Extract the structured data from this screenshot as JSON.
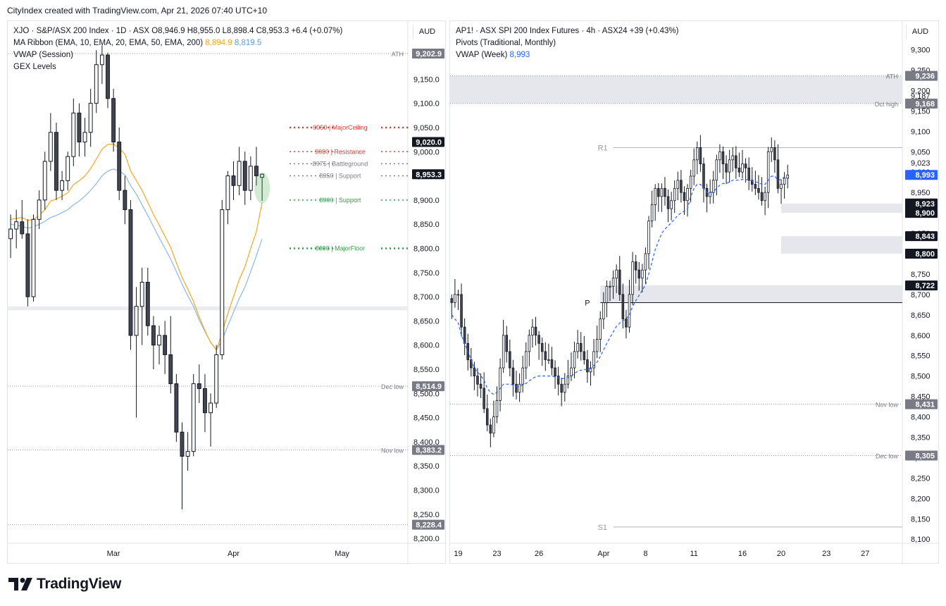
{
  "header": {
    "credit": "CityIndex created with TradingView.com, Apr 21, 2026 07:40 UTC+10"
  },
  "footer": {
    "brand": "TradingView"
  },
  "left": {
    "currency": "AUD",
    "legend": {
      "symbol": "XJO · S&P/ASX 200 Index · 1D · ASX",
      "ohlc": "O8,946.9  H8,955.0  L8,898.4  C8,953.3  +6.4 (+0.07%)",
      "ma_ribbon": "MA Ribbon (EMA, 10, EMA, 20, EMA, 50, EMA, 200)",
      "ma_val_1": "8,894.9",
      "ma_val_2": "8,819.5",
      "vwap": "VWAP (Session)",
      "gex": "GEX Levels"
    }
  },
  "right": {
    "currency": "AUD",
    "legend": {
      "symbol": "AP1! · ASX SPI 200 Index Futures · 4h · ASX24  +39 (+0.43%)",
      "pivots": "Pivots (Traditional, Monthly)",
      "vwap": "VWAP (Week)",
      "vwap_val": "8,993"
    }
  },
  "chart_data": [
    {
      "type": "candlestick",
      "title": "XJO · S&P/ASX 200 Index · 1D · ASX",
      "yrange": [
        8190,
        9270
      ],
      "yticks": [
        8200,
        8250,
        8300,
        8350,
        8400,
        8450,
        8500,
        8550,
        8600,
        8650,
        8700,
        8750,
        8800,
        8850,
        8900,
        8950,
        9000,
        9050,
        9100,
        9150,
        9200
      ],
      "ytick_labels": [
        "8,200.0",
        "8,250.0",
        "8,300.0",
        "8,350.0",
        "8,400.0",
        "8,450.0",
        "8,500.0",
        "8,550.0",
        "8,600.0",
        "8,650.0",
        "8,700.0",
        "8,750.0",
        "8,800.0",
        "8,850.0",
        "8,900.0",
        "8,950.0",
        "9,000.0",
        "9,050.0",
        "9,100.0",
        "9,150.0",
        "9,200.0"
      ],
      "xlabels": [
        {
          "i": 18,
          "label": "Mar"
        },
        {
          "i": 39,
          "label": "Apr"
        },
        {
          "i": 58,
          "label": "May"
        }
      ],
      "bar_count": 70,
      "candles": [
        [
          8820,
          8870,
          8780,
          8840
        ],
        [
          8840,
          8880,
          8800,
          8855
        ],
        [
          8855,
          8900,
          8820,
          8830
        ],
        [
          8830,
          8860,
          8680,
          8700
        ],
        [
          8700,
          8870,
          8690,
          8860
        ],
        [
          8860,
          8920,
          8840,
          8900
        ],
        [
          8900,
          9000,
          8880,
          8980
        ],
        [
          8980,
          9080,
          8960,
          9040
        ],
        [
          9040,
          9060,
          8900,
          8920
        ],
        [
          8920,
          8960,
          8900,
          8940
        ],
        [
          8940,
          9000,
          8920,
          8990
        ],
        [
          8990,
          9110,
          8970,
          9080
        ],
        [
          9080,
          9100,
          8990,
          9020
        ],
        [
          9020,
          9070,
          8990,
          9040
        ],
        [
          9040,
          9130,
          9010,
          9100
        ],
        [
          9100,
          9210,
          9080,
          9180
        ],
        [
          9180,
          9220,
          9140,
          9200
        ],
        [
          9200,
          9205,
          9090,
          9110
        ],
        [
          9110,
          9130,
          9000,
          9020
        ],
        [
          9020,
          9050,
          8900,
          8920
        ],
        [
          8920,
          8950,
          8850,
          8880
        ],
        [
          8880,
          8900,
          8590,
          8620
        ],
        [
          8620,
          8720,
          8450,
          8680
        ],
        [
          8680,
          8760,
          8600,
          8730
        ],
        [
          8730,
          8760,
          8620,
          8640
        ],
        [
          8640,
          8660,
          8550,
          8600
        ],
        [
          8600,
          8640,
          8560,
          8620
        ],
        [
          8620,
          8650,
          8540,
          8580
        ],
        [
          8580,
          8660,
          8500,
          8520
        ],
        [
          8520,
          8540,
          8400,
          8420
        ],
        [
          8420,
          8440,
          8260,
          8370
        ],
        [
          8370,
          8420,
          8340,
          8380
        ],
        [
          8380,
          8540,
          8370,
          8520
        ],
        [
          8520,
          8560,
          8480,
          8510
        ],
        [
          8510,
          8540,
          8420,
          8460
        ],
        [
          8460,
          8500,
          8390,
          8480
        ],
        [
          8480,
          8600,
          8470,
          8580
        ],
        [
          8580,
          8900,
          8570,
          8880
        ],
        [
          8880,
          8960,
          8850,
          8950
        ],
        [
          8950,
          8980,
          8900,
          8930
        ],
        [
          8930,
          9010,
          8910,
          8980
        ],
        [
          8980,
          9000,
          8890,
          8920
        ],
        [
          8920,
          8990,
          8900,
          8970
        ],
        [
          8970,
          9010,
          8930,
          8950
        ],
        [
          8946.9,
          8955,
          8898.4,
          8953.3
        ]
      ],
      "ema_fast": [
        8860,
        8862,
        8864,
        8858,
        8860,
        8868,
        8880,
        8898,
        8902,
        8908,
        8915,
        8932,
        8940,
        8950,
        8965,
        8985,
        9005,
        9015,
        9016,
        9007,
        8995,
        8960,
        8940,
        8920,
        8895,
        8870,
        8848,
        8825,
        8802,
        8770,
        8740,
        8716,
        8690,
        8658,
        8630,
        8605,
        8590,
        8625,
        8665,
        8700,
        8735,
        8762,
        8800,
        8835,
        8894.9
      ],
      "ema_slow": [
        8850,
        8848,
        8846,
        8842,
        8844,
        8850,
        8856,
        8864,
        8868,
        8874,
        8880,
        8890,
        8898,
        8908,
        8920,
        8934,
        8950,
        8960,
        8964,
        8960,
        8952,
        8930,
        8912,
        8890,
        8868,
        8845,
        8822,
        8800,
        8778,
        8752,
        8726,
        8702,
        8680,
        8652,
        8628,
        8606,
        8590,
        8610,
        8640,
        8668,
        8696,
        8720,
        8752,
        8785,
        8819.5
      ],
      "levels": [
        {
          "value": 9050,
          "label": "9050 | MajorCeiling",
          "color": "#e53935"
        },
        {
          "value": 9000,
          "label": "9000 | Resistance",
          "color": "#e53935"
        },
        {
          "value": 8975,
          "label": "8975 | Battleground",
          "color": "#787b86"
        },
        {
          "value": 8950,
          "label": "8950 | Support",
          "color": "#787b86"
        },
        {
          "value": 8900,
          "label": "8900 | Support",
          "color": "#2e9e44"
        },
        {
          "value": 8800,
          "label": "8800 | MajorFloor",
          "color": "#2e9e44"
        }
      ],
      "ref_lines": [
        {
          "value": 9202.9,
          "label": "ATH",
          "price": "9,202.9"
        },
        {
          "value": 8514.9,
          "label": "Dec low",
          "price": "8,514.9"
        },
        {
          "value": 8383.2,
          "label": "Nov low",
          "price": "8,383.2"
        },
        {
          "value": 8228.4,
          "label": "",
          "price": "8,228.4"
        }
      ],
      "price_labels": [
        {
          "value": 9020.0,
          "label": "9,020.0"
        },
        {
          "value": 8953.3,
          "label": "8,953.3"
        }
      ]
    },
    {
      "type": "candlestick",
      "title": "AP1! · ASX SPI 200 Index Futures · 4h · ASX24",
      "yrange": [
        8090,
        9370
      ],
      "yticks": [
        8100,
        8150,
        8200,
        8250,
        8300,
        8350,
        8400,
        8450,
        8500,
        8550,
        8600,
        8650,
        8700,
        8750,
        8800,
        8850,
        8900,
        8950,
        9000,
        9050,
        9100,
        9150,
        9200,
        9250,
        9300
      ],
      "ytick_labels": [
        "8,100",
        "8,150",
        "8,200",
        "8,250",
        "8,300",
        "8,350",
        "8,400",
        "8,450",
        "8,500",
        "8,550",
        "8,600",
        "8,650",
        "8,700",
        "8,750",
        "8,800",
        "8,850",
        "8,900",
        "8,950",
        "9,000",
        "9,050",
        "9,100",
        "9,150",
        "9,200",
        "9,250",
        "9,300"
      ],
      "xlabels": [
        {
          "i": 2,
          "label": "19"
        },
        {
          "i": 14,
          "label": "23"
        },
        {
          "i": 27,
          "label": "26"
        },
        {
          "i": 47,
          "label": "Apr"
        },
        {
          "i": 60,
          "label": "8"
        },
        {
          "i": 75,
          "label": "11"
        },
        {
          "i": 90,
          "label": "16"
        },
        {
          "i": 102,
          "label": "20"
        },
        {
          "i": 116,
          "label": "23"
        },
        {
          "i": 128,
          "label": "27"
        }
      ],
      "bar_count": 140,
      "closes": [
        8680,
        8700,
        8700,
        8620,
        8580,
        8540,
        8520,
        8500,
        8480,
        8470,
        8420,
        8380,
        8360,
        8400,
        8440,
        8520,
        8600,
        8560,
        8520,
        8480,
        8460,
        8480,
        8520,
        8560,
        8600,
        8620,
        8600,
        8580,
        8560,
        8540,
        8540,
        8520,
        8500,
        8480,
        8460,
        8480,
        8500,
        8520,
        8560,
        8580,
        8560,
        8540,
        8510,
        8520,
        8560,
        8590,
        8640,
        8680,
        8720,
        8720,
        8740,
        8760,
        8700,
        8640,
        8620,
        8700,
        8780,
        8760,
        8740,
        8760,
        8800,
        8880,
        8920,
        8960,
        8940,
        8960,
        8940,
        8910,
        8930,
        8960,
        8980,
        8950,
        8930,
        8960,
        8990,
        9030,
        9060,
        9020,
        8960,
        8940,
        8950,
        8980,
        9030,
        9050,
        9020,
        9000,
        9030,
        9040,
        9010,
        9000,
        9020,
        9010,
        8980,
        8970,
        8960,
        8950,
        8930,
        8950,
        9050,
        9060,
        9030,
        8960,
        8970,
        8985,
        8993
      ],
      "vwap": [
        8650,
        8640,
        8630,
        8600,
        8580,
        8560,
        8540,
        8520,
        8510,
        8500,
        8490,
        8470,
        8460,
        8455,
        8460,
        8470,
        8480,
        8480,
        8480,
        8478,
        8475,
        8475,
        8478,
        8482,
        8488,
        8494,
        8498,
        8500,
        8500,
        8500,
        8500,
        8500,
        8498,
        8496,
        8494,
        8494,
        8496,
        8500,
        8506,
        8512,
        8514,
        8516,
        8516,
        8518,
        8526,
        8534,
        8548,
        8564,
        8580,
        8594,
        8608,
        8622,
        8630,
        8636,
        8640,
        8650,
        8670,
        8685,
        8698,
        8710,
        8724,
        8750,
        8780,
        8810,
        8830,
        8850,
        8860,
        8868,
        8876,
        8885,
        8894,
        8900,
        8904,
        8910,
        8940,
        8960,
        8970,
        8970,
        8960,
        8950,
        8950,
        8952,
        8960,
        8968,
        8972,
        8972,
        8976,
        8980,
        8980,
        8980,
        8982,
        8982,
        8980,
        8978,
        8976,
        8974,
        8970,
        8970,
        8980,
        8990,
        8990,
        8980,
        8982,
        8988,
        8993
      ],
      "ref_lines": [
        {
          "value": 9236,
          "label": "ATH",
          "price": "9,236"
        },
        {
          "value": 9168,
          "label": "Oct high",
          "price": "9,168"
        },
        {
          "value": 8431,
          "label": "Nov low",
          "price": "8,431"
        },
        {
          "value": 8305,
          "label": "Dec low",
          "price": "8,305"
        }
      ],
      "pivots": [
        {
          "label": "R1",
          "value": 9060
        },
        {
          "label": "P",
          "value": 8680
        },
        {
          "label": "S1",
          "value": 8130
        }
      ],
      "zones": [
        [
          9168,
          9236
        ],
        [
          8900,
          8923
        ],
        [
          8800,
          8843
        ],
        [
          8680,
          8722
        ]
      ],
      "price_labels": [
        {
          "value": 9187,
          "label": "9,187"
        },
        {
          "value": 9023,
          "label": "9,023"
        },
        {
          "value": 8923,
          "label": "8,923"
        },
        {
          "value": 8900,
          "label": "8,900"
        },
        {
          "value": 8843,
          "label": "8,843"
        },
        {
          "value": 8800,
          "label": "8,800"
        },
        {
          "value": 8722,
          "label": "8,722"
        }
      ],
      "last_price": {
        "value": 8993,
        "label": "8,993"
      }
    }
  ],
  "colors": {
    "candle_up": "#ffffff",
    "candle_down": "#434651",
    "wick": "#131722",
    "ema_fast": "#f5a623",
    "ema_slow": "#8ab8e6",
    "vwap": "#2962ff",
    "zone": "#e6e7ec",
    "ref_line": "#9598a1",
    "label_bg": "#787b86",
    "last_price_bg": "#2962ff"
  }
}
